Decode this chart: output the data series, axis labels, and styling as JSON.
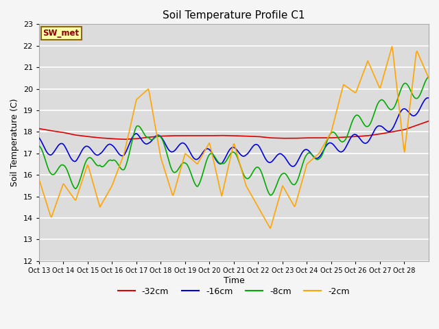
{
  "title": "Soil Temperature Profile C1",
  "xlabel": "Time",
  "ylabel": "Soil Temperature (C)",
  "ylim": [
    12.0,
    23.0
  ],
  "yticks": [
    12.0,
    13.0,
    14.0,
    15.0,
    16.0,
    17.0,
    18.0,
    19.0,
    20.0,
    21.0,
    22.0,
    23.0
  ],
  "bg_color": "#dcdcdc",
  "legend_label": "SW_met",
  "colors": {
    "-32cm": "#dd0000",
    "-16cm": "#0000dd",
    "-8cm": "#00aa00",
    "-2cm": "#ffa500"
  },
  "x_tick_labels": [
    "Oct 13",
    "Oct 14",
    "Oct 15",
    "Oct 16",
    "Oct 17",
    "Oct 18",
    "Oct 19",
    "Oct 20",
    "Oct 21",
    "Oct 22",
    "Oct 23",
    "Oct 24",
    "Oct 25",
    "Oct 26",
    "Oct 27",
    "Oct 28"
  ],
  "legend_labels": [
    "-32cm",
    "-16cm",
    "-8cm",
    "-2cm"
  ],
  "red_base_nodes_x": [
    0,
    0.5,
    1,
    1.5,
    2,
    2.5,
    3,
    3.5,
    4,
    4.5,
    5,
    5.5,
    6,
    6.5,
    7,
    7.5,
    8,
    8.5,
    9,
    9.5,
    10,
    10.5,
    11,
    11.5,
    12,
    12.5,
    13,
    13.5,
    14,
    14.5,
    15,
    15.5,
    16
  ],
  "red_base_nodes_y": [
    18.15,
    18.05,
    17.97,
    17.85,
    17.78,
    17.72,
    17.68,
    17.65,
    17.68,
    17.75,
    17.8,
    17.82,
    17.82,
    17.82,
    17.82,
    17.83,
    17.82,
    17.8,
    17.78,
    17.72,
    17.7,
    17.7,
    17.72,
    17.72,
    17.72,
    17.75,
    17.78,
    17.82,
    17.9,
    18.0,
    18.1,
    18.3,
    18.5
  ],
  "blue_base_nodes_x": [
    0,
    0.5,
    1,
    1.5,
    2,
    2.5,
    3,
    3.5,
    4,
    4.5,
    5,
    5.5,
    6,
    6.5,
    7,
    7.5,
    8,
    8.5,
    9,
    9.5,
    10,
    10.5,
    11,
    11.5,
    12,
    12.5,
    13,
    13.5,
    14,
    14.5,
    15,
    15.5,
    16
  ],
  "blue_base_nodes_y": [
    17.45,
    17.2,
    17.15,
    16.9,
    17.05,
    17.25,
    17.1,
    17.2,
    17.65,
    17.75,
    17.5,
    17.35,
    17.15,
    17.0,
    16.9,
    16.8,
    17.0,
    17.2,
    17.1,
    16.85,
    16.65,
    16.7,
    16.9,
    17.1,
    17.2,
    17.4,
    17.6,
    17.8,
    18.0,
    18.4,
    18.8,
    19.1,
    19.3
  ],
  "blue_amp": 0.3,
  "blue_freq": 1.0,
  "blue_phase": 2.0,
  "green_base_nodes_x": [
    0,
    0.5,
    1,
    1.5,
    2,
    2.5,
    3,
    3.5,
    4,
    4.5,
    5,
    5.5,
    6,
    6.5,
    7,
    7.5,
    8,
    8.5,
    9,
    9.5,
    10,
    10.5,
    11,
    11.5,
    12,
    12.5,
    13,
    13.5,
    14,
    14.5,
    15,
    15.5,
    16
  ],
  "green_base_nodes_y": [
    16.9,
    16.5,
    16.0,
    15.8,
    16.3,
    16.9,
    16.2,
    16.7,
    17.8,
    18.2,
    17.3,
    16.6,
    16.1,
    15.9,
    16.5,
    17.0,
    16.6,
    16.3,
    15.9,
    15.5,
    15.6,
    16.0,
    16.5,
    17.2,
    17.5,
    18.0,
    18.3,
    18.7,
    19.0,
    19.5,
    19.8,
    20.0,
    20.1
  ],
  "green_amp": 0.45,
  "green_freq": 1.0,
  "green_phase": 1.5,
  "orange_base_nodes_x": [
    0,
    0.5,
    1,
    1.5,
    2,
    2.5,
    3,
    3.5,
    4,
    4.5,
    5,
    5.5,
    6,
    6.5,
    7,
    7.5,
    8,
    8.5,
    9,
    9.5,
    10,
    10.5,
    11,
    11.5,
    12,
    12.5,
    13,
    13.5,
    14,
    14.5,
    15,
    15.5,
    16
  ],
  "orange_base_nodes_y": [
    15.8,
    14.0,
    15.6,
    14.8,
    16.5,
    14.5,
    15.5,
    17.0,
    19.5,
    20.0,
    16.8,
    15.0,
    17.0,
    16.5,
    17.5,
    15.0,
    17.5,
    15.5,
    14.5,
    13.5,
    15.5,
    14.5,
    16.5,
    17.0,
    18.0,
    20.2,
    19.8,
    21.3,
    20.0,
    22.0,
    17.0,
    21.8,
    20.5
  ],
  "orange_amp": 0.0,
  "orange_freq": 1.0,
  "orange_phase": 0.0
}
